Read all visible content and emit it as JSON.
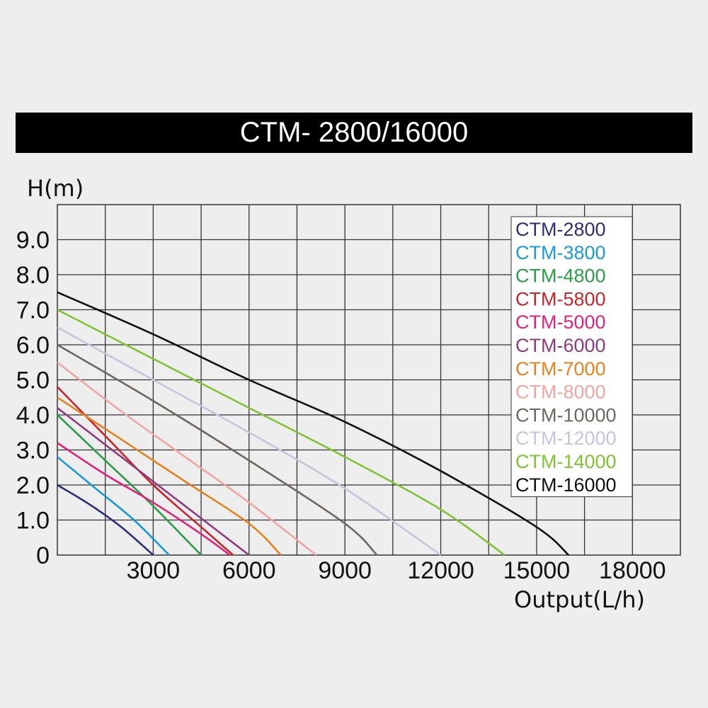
{
  "chart_data": {
    "type": "line",
    "title": "CTM- 2800/16000",
    "ylabel": "H(m)",
    "xlabel": "Output(L/h)",
    "xlim": [
      0,
      19500
    ],
    "ylim": [
      0,
      10
    ],
    "grid": true,
    "legend_position": "top-right",
    "x_ticks": [
      3000,
      6000,
      9000,
      12000,
      15000,
      18000
    ],
    "x_tick_labels": [
      "3000",
      "6000",
      "9000",
      "12000",
      "15000",
      "18000"
    ],
    "y_ticks": [
      0,
      1,
      2,
      3,
      4,
      5,
      6,
      7,
      8,
      9
    ],
    "y_tick_labels": [
      "0",
      "1.0",
      "2.0",
      "3.0",
      "4.0",
      "5.0",
      "6.0",
      "7.0",
      "8.0",
      "9.0"
    ],
    "series": [
      {
        "name": "CTM-2800",
        "color": "#2b2f7a",
        "x": [
          0,
          1000,
          2000,
          3000
        ],
        "y": [
          2.0,
          1.45,
          0.8,
          0
        ]
      },
      {
        "name": "CTM-3800",
        "color": "#1a9ad6",
        "x": [
          0,
          1200,
          2400,
          3500
        ],
        "y": [
          2.8,
          1.9,
          1.0,
          0
        ]
      },
      {
        "name": "CTM-4800",
        "color": "#2a9d48",
        "x": [
          0,
          1500,
          3000,
          4500
        ],
        "y": [
          4.0,
          2.7,
          1.4,
          0
        ]
      },
      {
        "name": "CTM-5800",
        "color": "#c8262c",
        "x": [
          0,
          1500,
          3000,
          4500,
          5500
        ],
        "y": [
          4.8,
          3.4,
          2.0,
          0.8,
          0
        ]
      },
      {
        "name": "CTM-5000",
        "color": "#e0237a",
        "x": [
          0,
          1500,
          3000,
          4500,
          5400
        ],
        "y": [
          3.2,
          2.3,
          1.5,
          0.6,
          0
        ]
      },
      {
        "name": "CTM-6000",
        "color": "#8e3b7e",
        "x": [
          0,
          2000,
          4000,
          6000
        ],
        "y": [
          4.2,
          2.8,
          1.4,
          0
        ]
      },
      {
        "name": "CTM-7000",
        "color": "#e6821e",
        "x": [
          0,
          2000,
          4000,
          6000,
          7000
        ],
        "y": [
          4.5,
          3.3,
          2.1,
          0.9,
          0
        ]
      },
      {
        "name": "CTM-8000",
        "color": "#f0a6a0",
        "x": [
          0,
          2000,
          4000,
          6000,
          8100
        ],
        "y": [
          5.5,
          4.1,
          2.8,
          1.5,
          0
        ]
      },
      {
        "name": "CTM-10000",
        "color": "#6d6761",
        "x": [
          0,
          3000,
          6000,
          9000,
          10000
        ],
        "y": [
          6.0,
          4.4,
          2.7,
          0.9,
          0
        ]
      },
      {
        "name": "CTM-12000",
        "color": "#c5c5dd",
        "x": [
          0,
          3000,
          6000,
          9000,
          12000
        ],
        "y": [
          6.5,
          5.0,
          3.5,
          1.9,
          0
        ]
      },
      {
        "name": "CTM-14000",
        "color": "#7ec534",
        "x": [
          0,
          3000,
          6000,
          9000,
          12000,
          14000
        ],
        "y": [
          7.0,
          5.6,
          4.2,
          2.8,
          1.3,
          0
        ]
      },
      {
        "name": "CTM-16000",
        "color": "#111111",
        "x": [
          0,
          3000,
          6000,
          9000,
          12000,
          15000,
          16000
        ],
        "y": [
          7.5,
          6.3,
          5.0,
          3.8,
          2.4,
          0.8,
          0
        ]
      }
    ]
  }
}
